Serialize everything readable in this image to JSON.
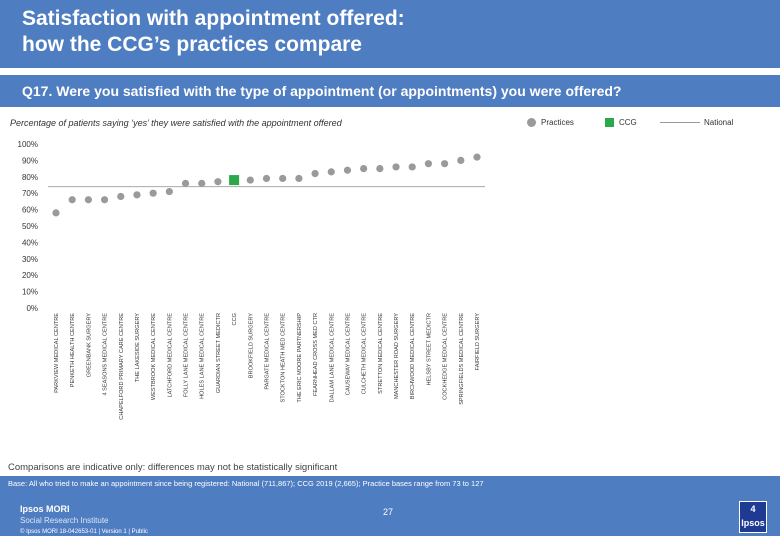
{
  "page": {
    "title_line1": "Satisfaction with appointment offered:",
    "title_line2": "how the CCG’s practices compare",
    "question": "Q17. Were you satisfied with the type of appointment (or appointments) you were offered?",
    "subtitle": "Percentage of patients saying ‘yes’ they were satisfied with the appointment offered",
    "legend": {
      "practices": "Practices",
      "ccg": "CCG",
      "national": "National"
    },
    "comparison_note": "Comparisons are indicative only: differences may not be statistically significant",
    "base_note": "Base: All who tried to make an appointment since being registered: National (711,867); CCG 2019 (2,665); Practice bases range from 73 to 127",
    "footer": {
      "logo_line1": "Ipsos MORI",
      "logo_line2": "Social Research Institute",
      "copyright": "© Ipsos MORI    18-042653-01 | Version 1 | Public",
      "page_number": "27",
      "badge": "4 Ipsos"
    }
  },
  "colors": {
    "practice": "#9a9a9a",
    "ccg": "#2aa84a",
    "national": "#aaaaaa",
    "header": "#4f7dc1"
  },
  "chart_data": {
    "type": "scatter",
    "title": "Percentage of patients saying ‘yes’ they were satisfied with the appointment offered",
    "ylabel": "",
    "ylim": [
      0,
      100
    ],
    "yticks": [
      "0%",
      "10%",
      "20%",
      "30%",
      "40%",
      "50%",
      "60%",
      "70%",
      "80%",
      "90%",
      "100%"
    ],
    "national_value": 74,
    "categories": [
      "PARKVIEW MEDICAL CENTRE",
      "PENKETH HEALTH CENTRE",
      "GREENBANK SURGERY",
      "4 SEASONS MEDICAL CENTRE",
      "CHAPELFORD PRIMARY CARE CENTRE",
      "THE LAKESIDE SURGERY",
      "WESTBROOK MEDICAL CENTRE",
      "LATCHFORD MEDICAL CENTRE",
      "FOLLY LANE MEDICAL CENTRE",
      "HOLES LANE MEDICAL CENTRE",
      "GUARDIAN STREET MEDICTR",
      "CCG",
      "BROOKFIELD SURGERY",
      "PARGATE MEDICAL CENTRE",
      "STOCKTON HEATH MED CENTRE",
      "THE ERIC MOORE PARTNERSHIP",
      "FEARNHEAD CROSS MED CTR",
      "DALLAM LANE MEDICAL CENTRE",
      "CAUSEWAY MEDICAL CENTRE",
      "CULCHETH MEDICAL CENTRE",
      "STRETTON MEDICAL CENTRE",
      "MANCHESTER ROAD SURGERY",
      "BIRCHWOOD MEDICAL CENTRE",
      "HELSBY STREET MEDICTR",
      "COCKHEDGE MEDICAL CENTRE",
      "SPRINGFIELDS MEDICAL CENTRE",
      "FAIRFIELD SURGERY"
    ],
    "values": [
      58,
      66,
      66,
      66,
      68,
      69,
      70,
      71,
      76,
      76,
      77,
      78,
      78,
      79,
      79,
      79,
      82,
      83,
      84,
      85,
      85,
      86,
      86,
      88,
      88,
      90,
      92
    ],
    "ccg_index": 11
  }
}
